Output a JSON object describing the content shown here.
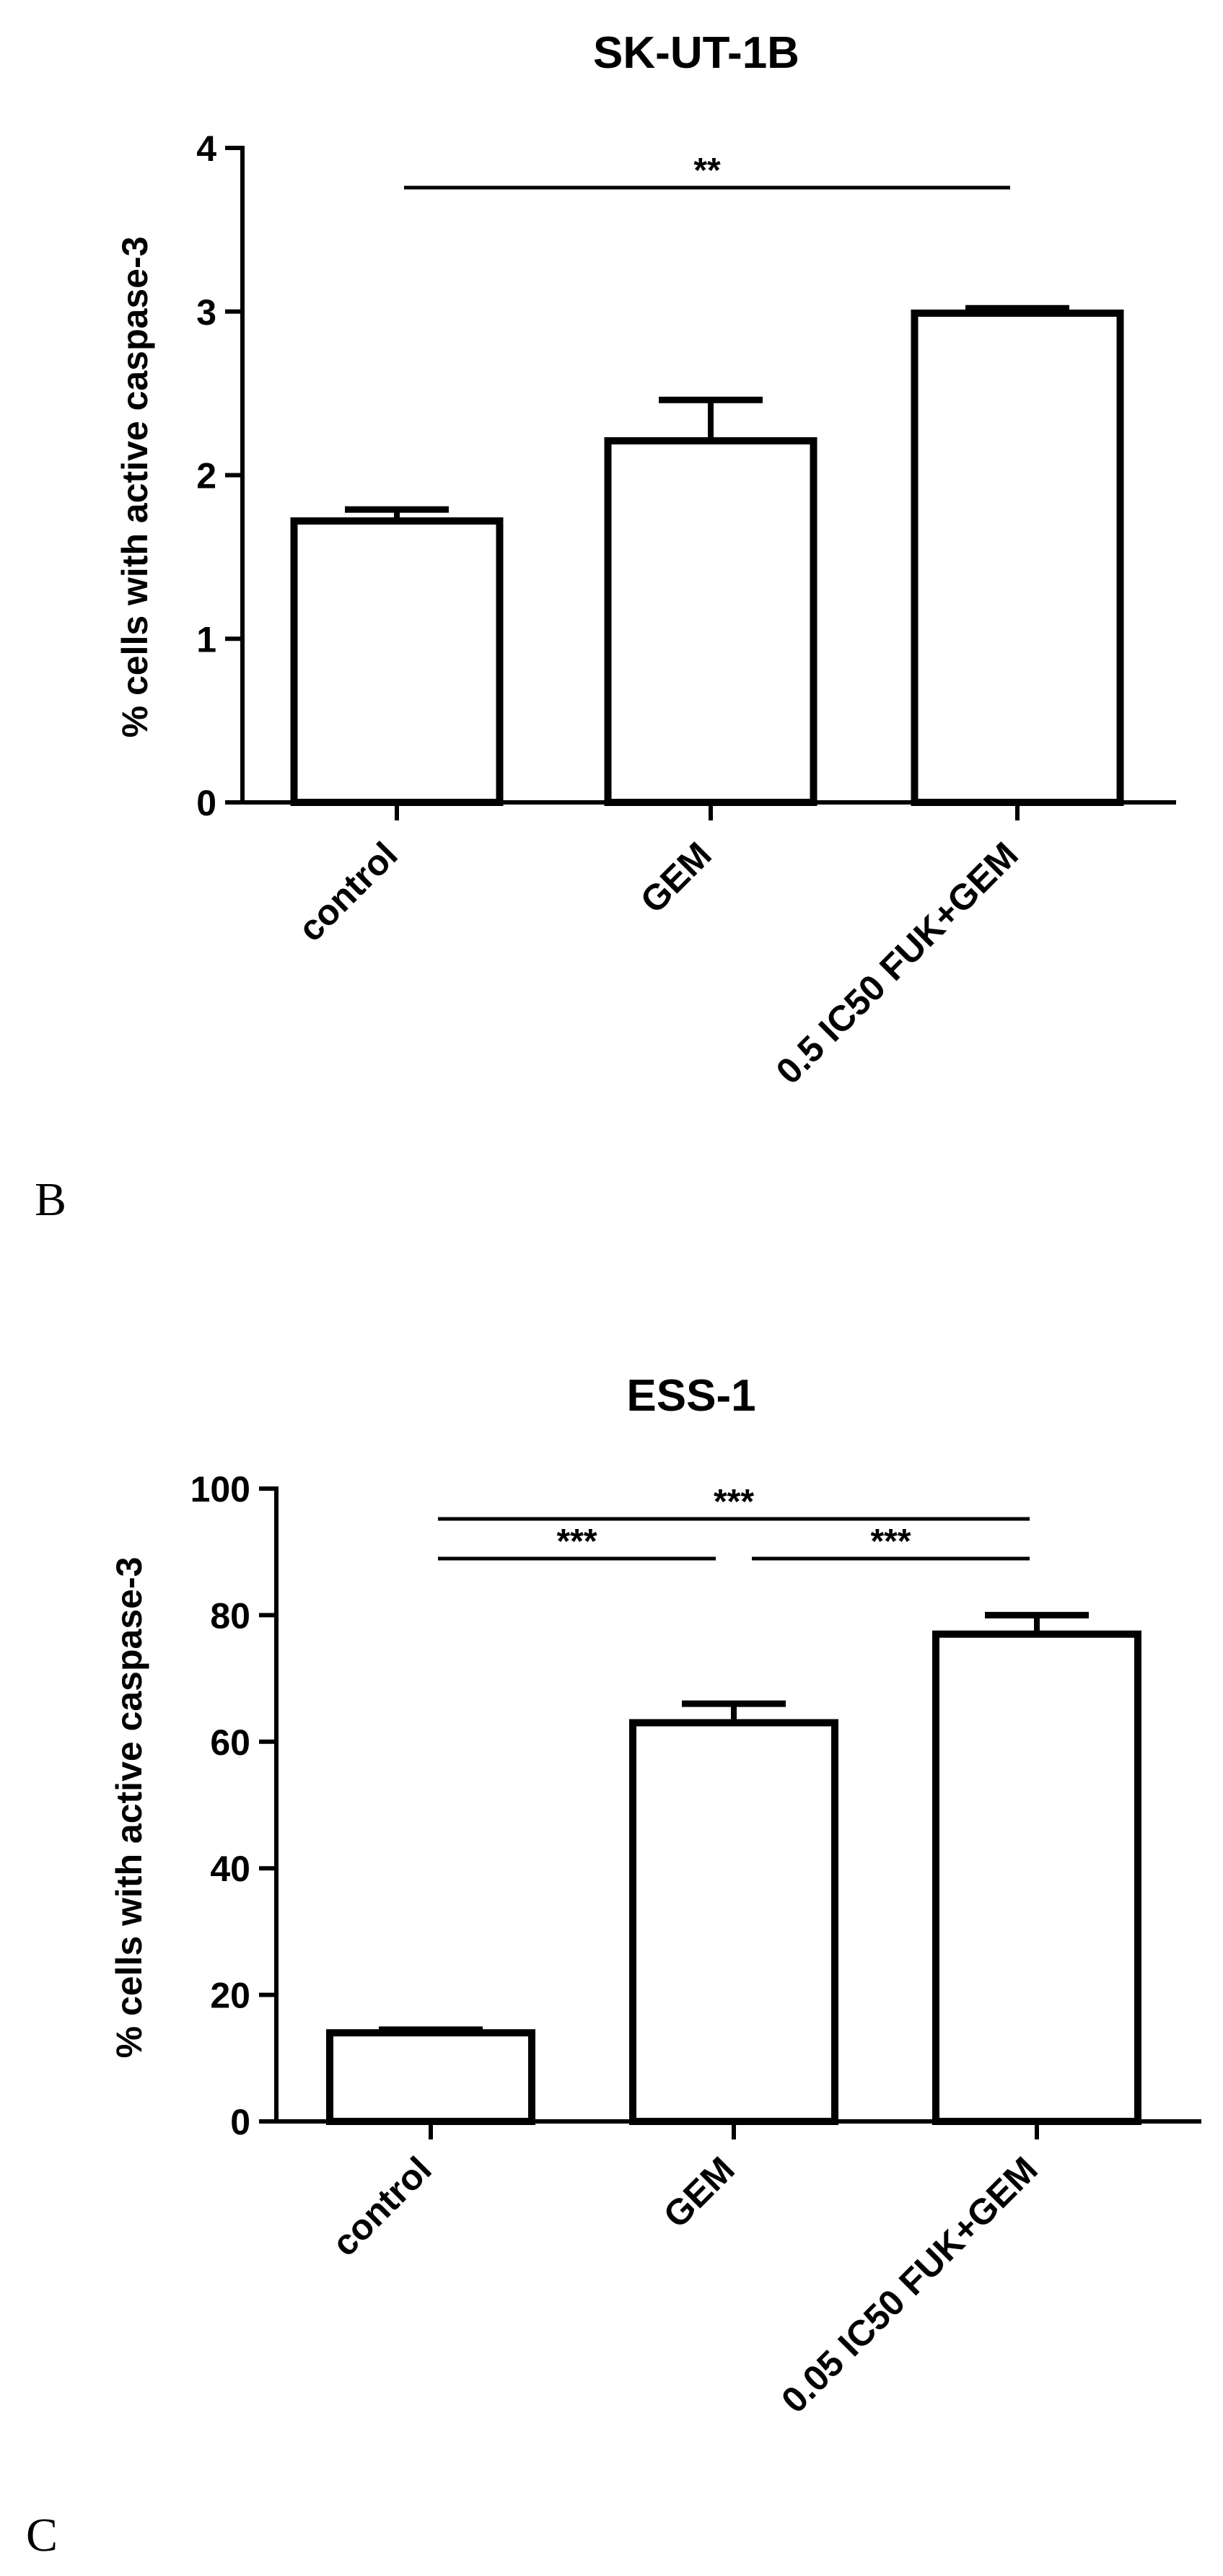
{
  "chart_data": [
    {
      "type": "bar",
      "title": "SK-UT-1B",
      "ylabel": "% cells with active caspase-3",
      "xlabel": "",
      "categories": [
        "control",
        "GEM",
        "0.5 IC50 FUK+GEM"
      ],
      "values": [
        1.72,
        2.21,
        2.99
      ],
      "errors": [
        0.07,
        0.25,
        0.03
      ],
      "ylim": [
        0,
        4
      ],
      "yticks": [
        0,
        1,
        2,
        3,
        4
      ],
      "significance": [
        {
          "from": 0,
          "to": 2,
          "label": "**"
        }
      ],
      "panel_label": "B"
    },
    {
      "type": "bar",
      "title": "ESS-1",
      "ylabel": "% cells with active caspase-3",
      "xlabel": "",
      "categories": [
        "control",
        "GEM",
        "0.05 IC50 FUK+GEM"
      ],
      "values": [
        14,
        63,
        77
      ],
      "errors": [
        0.5,
        3,
        3
      ],
      "ylim": [
        0,
        100
      ],
      "yticks": [
        0,
        20,
        40,
        60,
        80,
        100
      ],
      "significance": [
        {
          "from": 0,
          "to": 2,
          "label": "***"
        },
        {
          "from": 0,
          "to": 1,
          "label": "***"
        },
        {
          "from": 1,
          "to": 2,
          "label": "***"
        }
      ],
      "panel_label": "C"
    }
  ]
}
